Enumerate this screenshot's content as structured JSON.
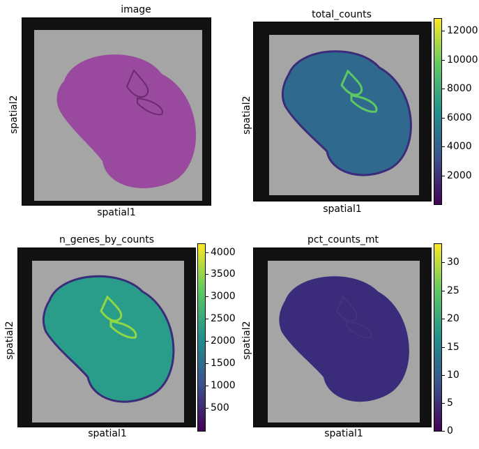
{
  "chart_data": [
    {
      "type": "heatmap",
      "title": "image",
      "xlabel": "spatial1",
      "ylabel": "spatial2",
      "colorbar": null,
      "fill": "#9a4a9e"
    },
    {
      "type": "heatmap",
      "title": "total_counts",
      "xlabel": "spatial1",
      "ylabel": "spatial2",
      "colorbar": {
        "min": 0,
        "max": 13000,
        "ticks": [
          "12000",
          "10000",
          "8000",
          "6000",
          "4000",
          "2000"
        ],
        "tick_values": [
          12000,
          10000,
          8000,
          6000,
          4000,
          2000
        ]
      },
      "fill": "#2f6a8e"
    },
    {
      "type": "heatmap",
      "title": "n_genes_by_counts",
      "xlabel": "spatial1",
      "ylabel": "spatial2",
      "colorbar": {
        "min": 0,
        "max": 4200,
        "ticks": [
          "4000",
          "3500",
          "3000",
          "2500",
          "2000",
          "1500",
          "1000",
          "500"
        ],
        "tick_values": [
          4000,
          3500,
          3000,
          2500,
          2000,
          1500,
          1000,
          500
        ]
      },
      "fill": "#2a9d8a"
    },
    {
      "type": "heatmap",
      "title": "pct_counts_mt",
      "xlabel": "spatial1",
      "ylabel": "spatial2",
      "colorbar": {
        "min": 0,
        "max": 33,
        "ticks": [
          "30",
          "25",
          "20",
          "15",
          "10",
          "5",
          "0"
        ],
        "tick_values": [
          30,
          25,
          20,
          15,
          10,
          5,
          0
        ]
      },
      "fill": "#3a2c7a"
    }
  ],
  "colors": {
    "colormap": [
      "#440154",
      "#3b528b",
      "#21908d",
      "#5dc863",
      "#fde725"
    ],
    "background_tissue_grid": "#a9a9a9"
  }
}
